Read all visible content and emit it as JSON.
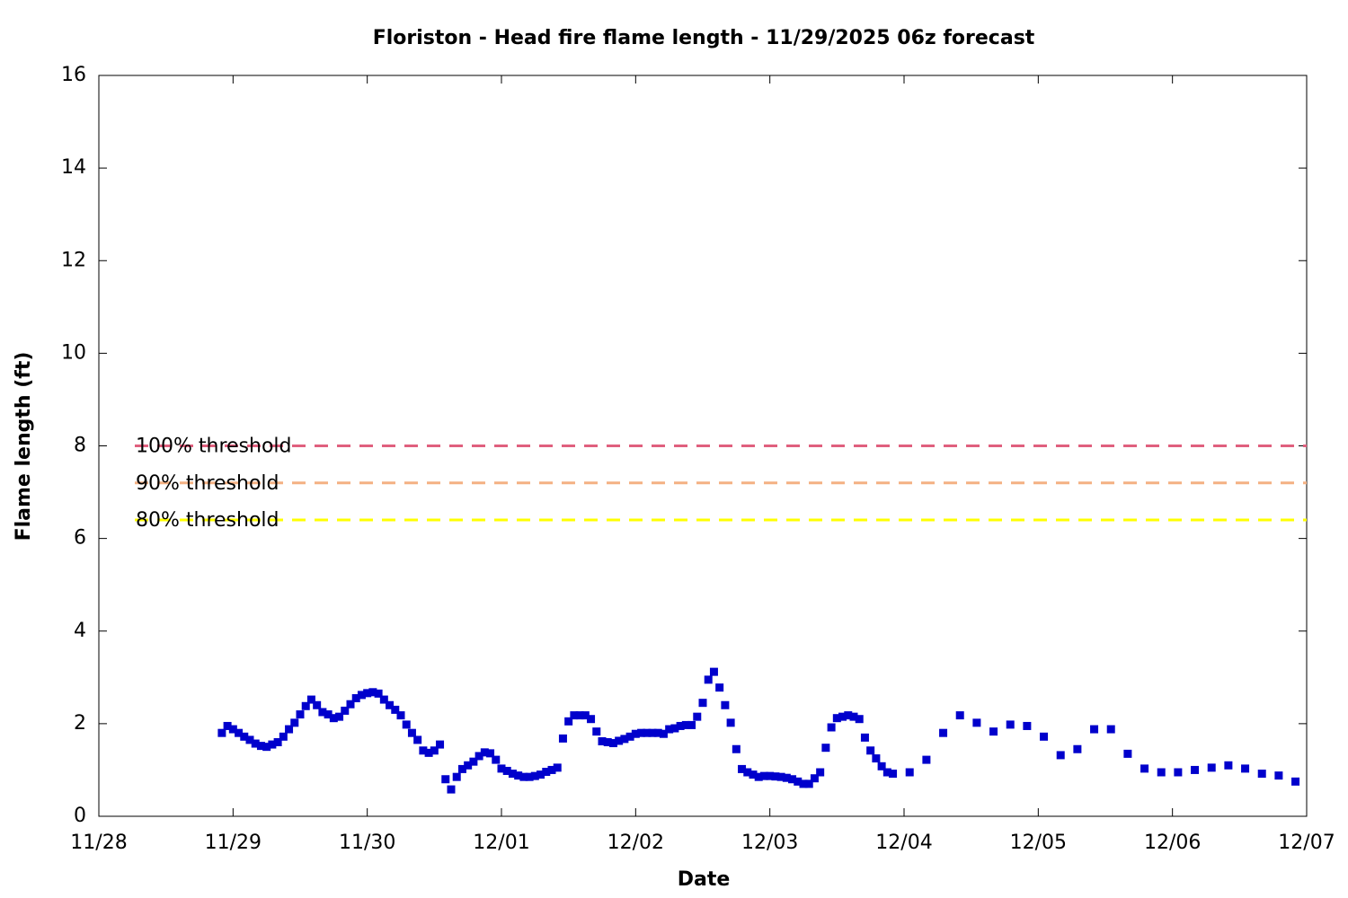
{
  "chart_data": {
    "type": "scatter",
    "title": "Floriston - Head fire flame length - 11/29/2025 06z forecast",
    "xlabel": "Date",
    "ylabel": "Flame length (ft)",
    "xlim": [
      0,
      216
    ],
    "xticks": [
      {
        "value": 0,
        "label": "11/28"
      },
      {
        "value": 24,
        "label": "11/29"
      },
      {
        "value": 48,
        "label": "11/30"
      },
      {
        "value": 72,
        "label": "12/01"
      },
      {
        "value": 96,
        "label": "12/02"
      },
      {
        "value": 120,
        "label": "12/03"
      },
      {
        "value": 144,
        "label": "12/04"
      },
      {
        "value": 168,
        "label": "12/05"
      },
      {
        "value": 192,
        "label": "12/06"
      },
      {
        "value": 216,
        "label": "12/07"
      }
    ],
    "ylim": [
      0,
      16
    ],
    "yticks": [
      0,
      2,
      4,
      6,
      8,
      10,
      12,
      14,
      16
    ],
    "color": "#0000cc",
    "x": [
      22,
      23,
      24,
      25,
      26,
      27,
      28,
      29,
      30,
      31,
      32,
      33,
      34,
      35,
      36,
      37,
      38,
      39,
      40,
      41,
      42,
      43,
      44,
      45,
      46,
      47,
      48,
      49,
      50,
      51,
      52,
      53,
      54,
      55,
      56,
      57,
      58,
      59,
      60,
      61,
      62,
      63,
      64,
      65,
      66,
      67,
      68,
      69,
      70,
      71,
      72,
      73,
      74,
      75,
      76,
      77,
      78,
      79,
      80,
      81,
      82,
      83,
      84,
      85,
      86,
      87,
      88,
      89,
      90,
      91,
      92,
      93,
      94,
      95,
      96,
      97,
      98,
      99,
      100,
      101,
      102,
      103,
      104,
      105,
      106,
      107,
      108,
      109,
      110,
      111,
      112,
      113,
      114,
      115,
      116,
      117,
      118,
      119,
      120,
      121,
      122,
      123,
      124,
      125,
      126,
      127,
      128,
      129,
      130,
      131,
      132,
      133,
      134,
      135,
      136,
      137,
      138,
      139,
      140,
      141,
      142,
      145,
      148,
      151,
      154,
      157,
      160,
      163,
      166,
      169,
      172,
      175,
      178,
      181,
      184,
      187,
      190,
      193,
      196,
      199,
      202,
      205,
      208,
      211,
      214
    ],
    "values": [
      1.8,
      1.95,
      1.88,
      1.8,
      1.72,
      1.65,
      1.57,
      1.52,
      1.5,
      1.55,
      1.6,
      1.72,
      1.88,
      2.02,
      2.2,
      2.38,
      2.52,
      2.4,
      2.25,
      2.2,
      2.12,
      2.15,
      2.28,
      2.42,
      2.55,
      2.62,
      2.66,
      2.68,
      2.65,
      2.52,
      2.4,
      2.3,
      2.18,
      1.98,
      1.8,
      1.65,
      1.42,
      1.37,
      1.42,
      1.55,
      0.8,
      0.58,
      0.85,
      1.02,
      1.1,
      1.18,
      1.3,
      1.38,
      1.36,
      1.22,
      1.03,
      0.98,
      0.92,
      0.88,
      0.85,
      0.85,
      0.87,
      0.9,
      0.96,
      1.0,
      1.05,
      1.68,
      2.05,
      2.18,
      2.18,
      2.18,
      2.1,
      1.83,
      1.62,
      1.6,
      1.58,
      1.63,
      1.67,
      1.72,
      1.78,
      1.8,
      1.8,
      1.8,
      1.8,
      1.78,
      1.88,
      1.9,
      1.95,
      1.97,
      1.97,
      2.15,
      2.45,
      2.95,
      3.12,
      2.78,
      2.4,
      2.02,
      1.45,
      1.02,
      0.95,
      0.9,
      0.85,
      0.87,
      0.87,
      0.86,
      0.85,
      0.83,
      0.8,
      0.75,
      0.7,
      0.7,
      0.82,
      0.95,
      1.48,
      1.92,
      2.12,
      2.15,
      2.18,
      2.15,
      2.1,
      1.7,
      1.42,
      1.25,
      1.08,
      0.95,
      0.92,
      0.95,
      1.22,
      1.8,
      2.18,
      2.02,
      1.83,
      1.98,
      1.95,
      1.72,
      1.32,
      1.45,
      1.88,
      1.88,
      1.35,
      1.03,
      0.95,
      0.95,
      1.0,
      1.05,
      1.1,
      1.03,
      0.92,
      0.88,
      0.75
    ],
    "thresholds": [
      {
        "label": "100% threshold",
        "value": 8,
        "color": "#e0607e"
      },
      {
        "label": "90% threshold",
        "value": 7.2,
        "color": "#f4b183"
      },
      {
        "label": "80% threshold",
        "value": 6.4,
        "color": "#ffff00"
      }
    ]
  }
}
